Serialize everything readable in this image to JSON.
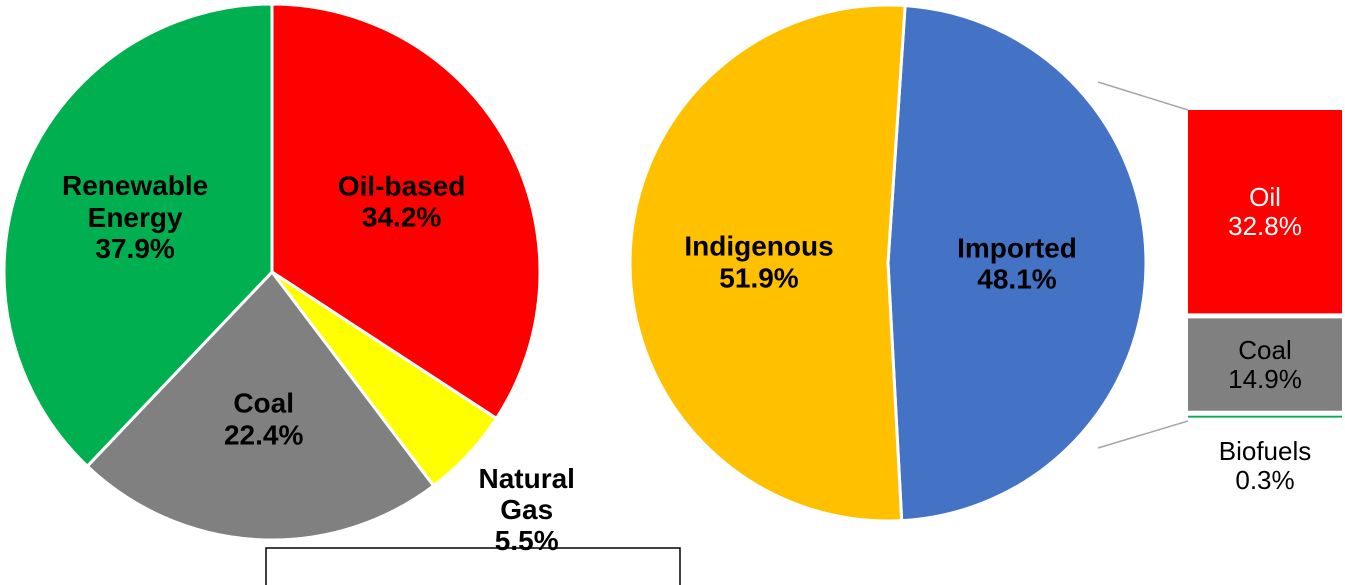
{
  "chart_data": [
    {
      "type": "pie",
      "categories": [
        "Oil-based",
        "Natural Gas",
        "Coal",
        "Renewable Energy"
      ],
      "values": [
        34.2,
        5.5,
        22.4,
        37.9
      ],
      "value_labels": [
        "34.2%",
        "5.5%",
        "22.4%",
        "37.9%"
      ],
      "colors": [
        "#ff0000",
        "#ffff00",
        "#808080",
        "#00b050"
      ]
    },
    {
      "type": "pie",
      "categories": [
        "Imported",
        "Indigenous"
      ],
      "values": [
        48.1,
        51.9
      ],
      "value_labels": [
        "48.1%",
        "51.9%"
      ],
      "colors": [
        "#4472c4",
        "#ffc000"
      ]
    },
    {
      "type": "bar",
      "categories": [
        "Oil",
        "Coal",
        "Biofuels"
      ],
      "values": [
        32.8,
        14.9,
        0.3
      ],
      "value_labels": [
        "32.8%",
        "14.9%",
        "0.3%"
      ],
      "colors": [
        "#ff0000",
        "#808080",
        "#00b050"
      ]
    }
  ]
}
